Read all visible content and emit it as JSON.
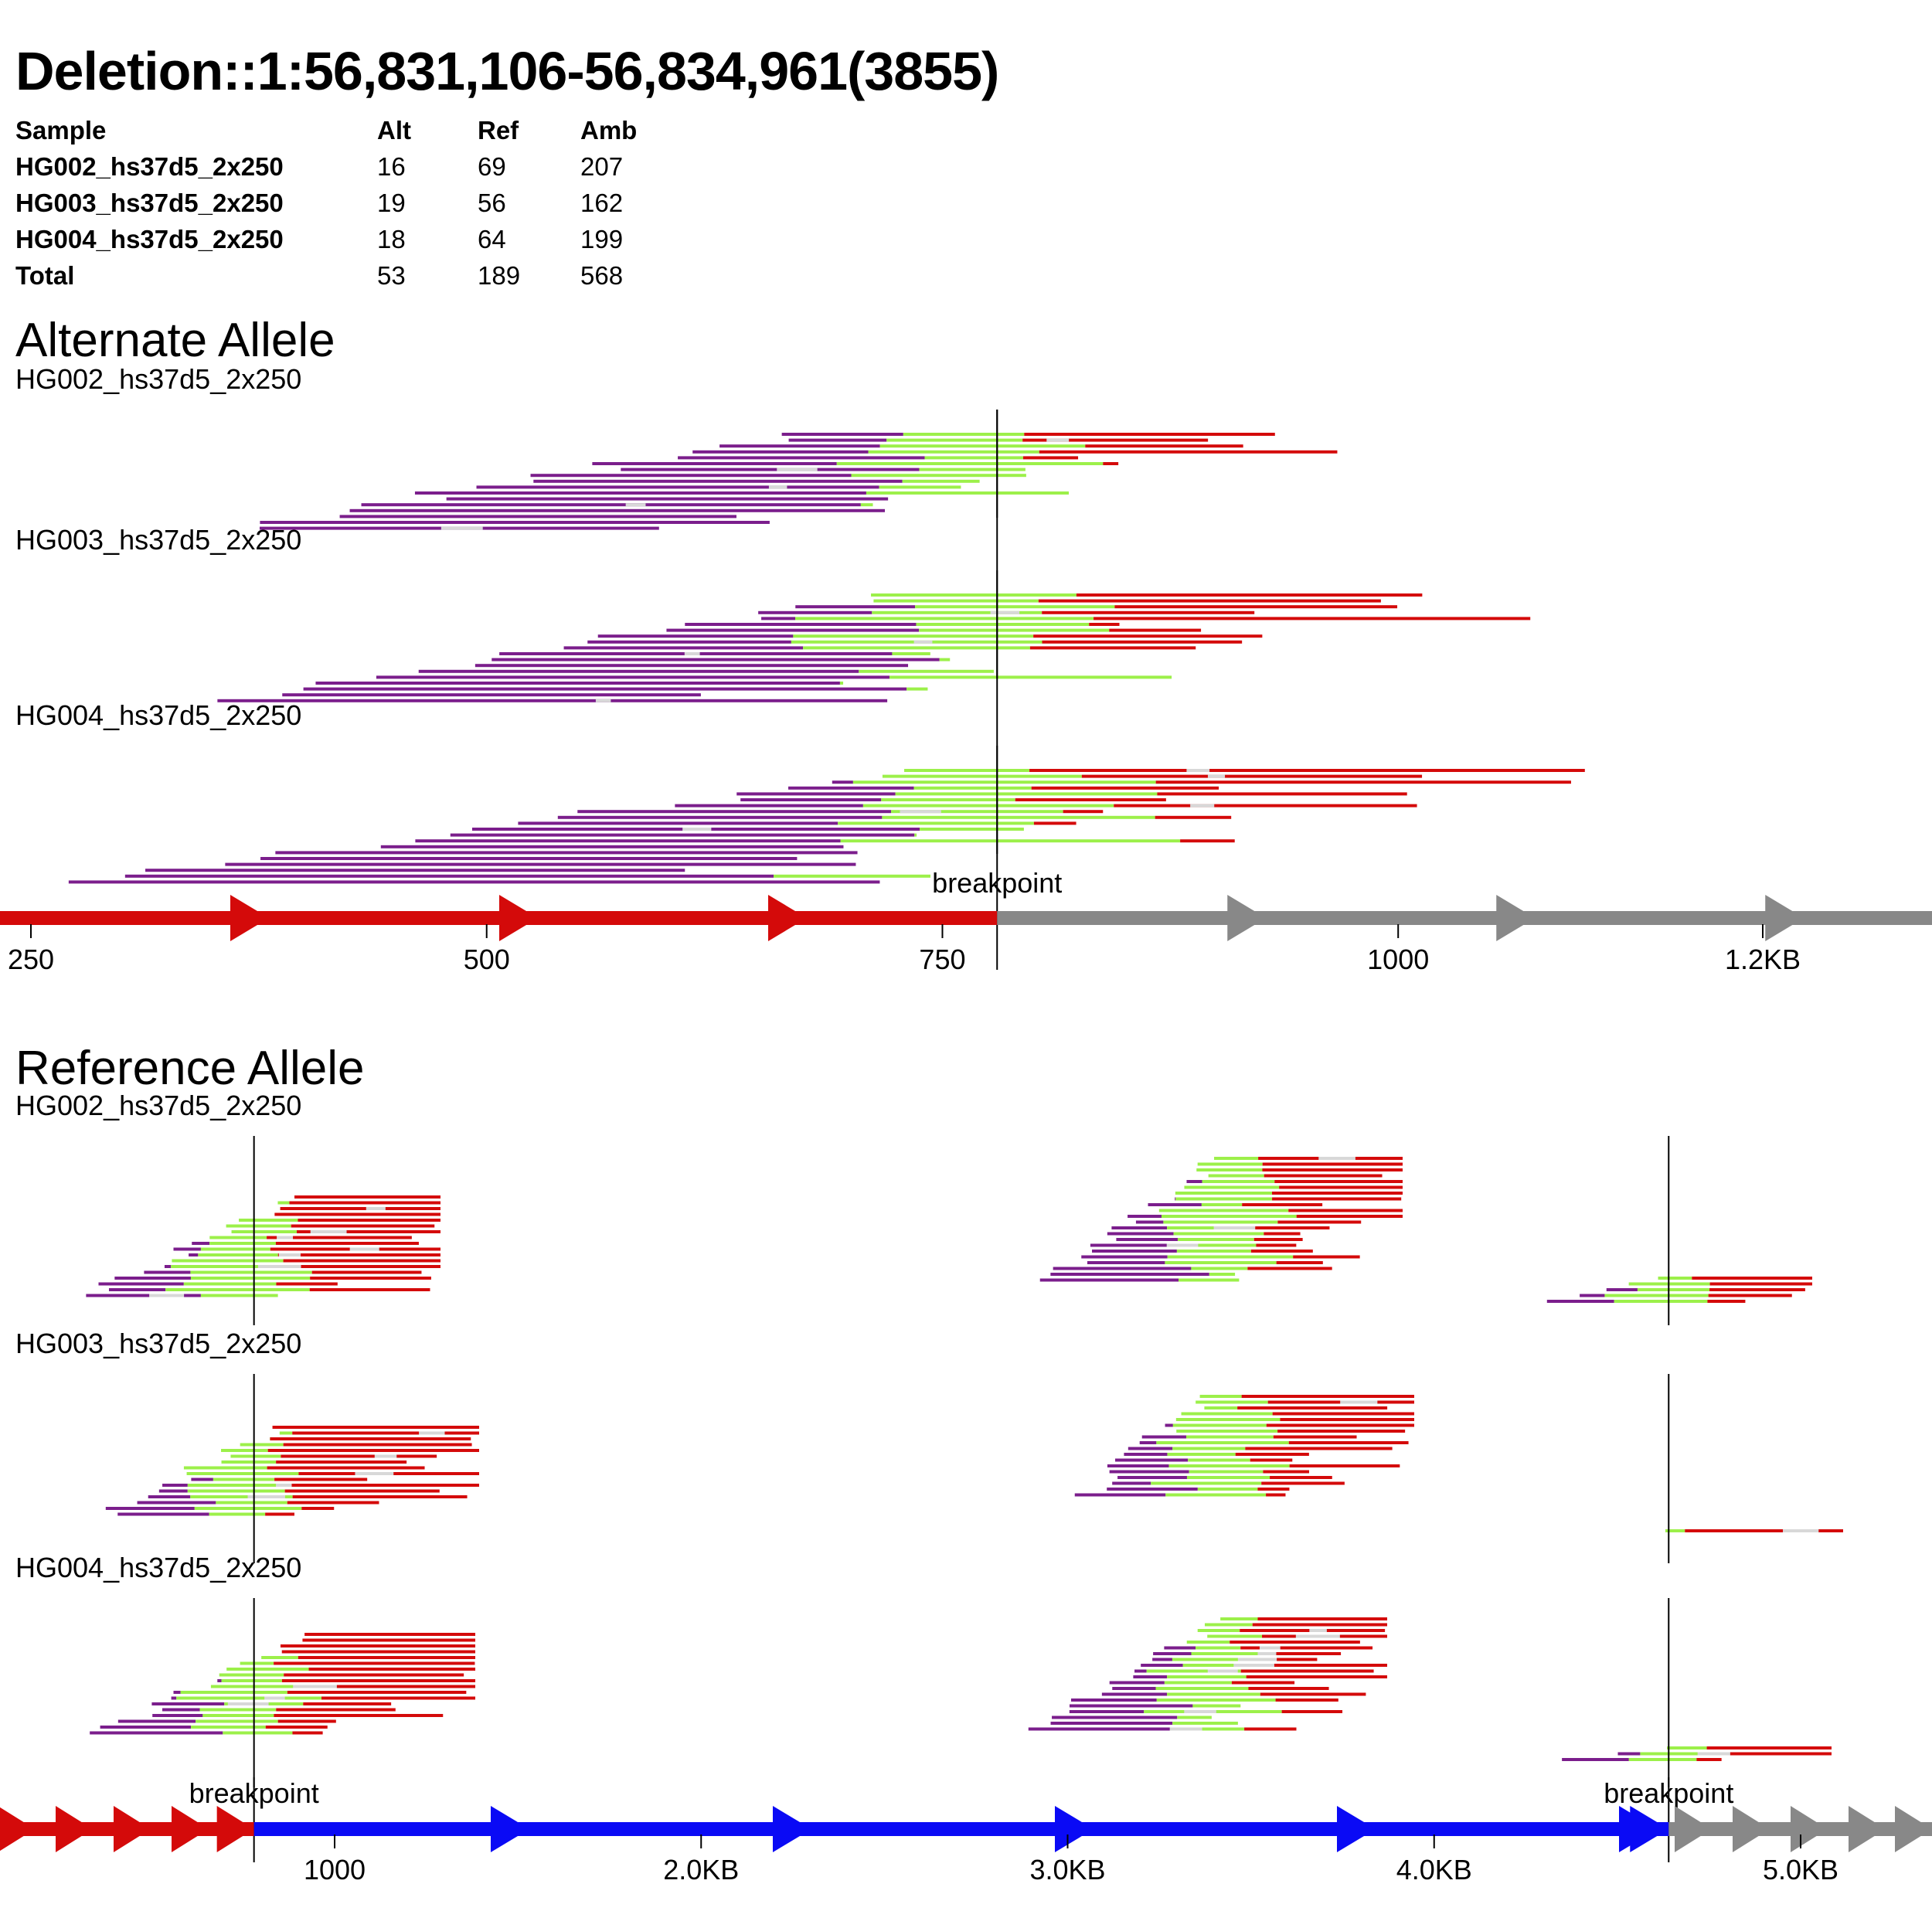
{
  "title": "Deletion::1:56,831,106-56,834,961(3855)",
  "stats": {
    "headers": [
      "Sample",
      "Alt",
      "Ref",
      "Amb"
    ],
    "rows": [
      {
        "sample": "HG002_hs37d5_2x250",
        "alt": "16",
        "ref": "69",
        "amb": "207"
      },
      {
        "sample": "HG003_hs37d5_2x250",
        "alt": "19",
        "ref": "56",
        "amb": "162"
      },
      {
        "sample": "HG004_hs37d5_2x250",
        "alt": "18",
        "ref": "64",
        "amb": "199"
      },
      {
        "sample": "Total",
        "alt": "53",
        "ref": "189",
        "amb": "568"
      }
    ]
  },
  "alt_section": {
    "title": "Alternate Allele",
    "samples": [
      "HG002_hs37d5_2x250",
      "HG003_hs37d5_2x250",
      "HG004_hs37d5_2x250"
    ],
    "breakpoint_label": "breakpoint"
  },
  "ref_section": {
    "title": "Reference Allele",
    "samples": [
      "HG002_hs37d5_2x250",
      "HG003_hs37d5_2x250",
      "HG004_hs37d5_2x250"
    ],
    "breakpoint_label": "breakpoint"
  },
  "colors": {
    "purple": "#7b1e8c",
    "green": "#9cf04a",
    "red": "#d40a0a",
    "gray": "#888888",
    "blue": "#0a0af5",
    "amb": "#d8d8d8",
    "line": "#000000"
  },
  "chart_data": [
    {
      "type": "alignment",
      "name": "Alternate Allele",
      "axis_units": "bp",
      "xlim": [
        230,
        1280
      ],
      "breakpoint": 780,
      "ticks": [
        {
          "value": 250,
          "label": "250"
        },
        {
          "value": 500,
          "label": "500"
        },
        {
          "value": 750,
          "label": "750"
        },
        {
          "value": 1000,
          "label": "1000"
        },
        {
          "value": 1200,
          "label": "1.2KB"
        }
      ],
      "segments": [
        {
          "from": 230,
          "to": 780,
          "color": "red",
          "label": "upstream"
        },
        {
          "from": 780,
          "to": 1280,
          "color": "gray",
          "label": "downstream"
        }
      ],
      "pileups": [
        {
          "sample": "HG002_hs37d5_2x250",
          "reads": 17,
          "min_start": 350,
          "max_end": 1280
        },
        {
          "sample": "HG003_hs37d5_2x250",
          "reads": 19,
          "min_start": 340,
          "max_end": 1230
        },
        {
          "sample": "HG004_hs37d5_2x250",
          "reads": 20,
          "min_start": 270,
          "max_end": 1220
        }
      ]
    },
    {
      "type": "alignment",
      "name": "Reference Allele",
      "axis_units": "bp",
      "xlim": [
        0,
        5300
      ],
      "breakpoints": [
        780,
        4640
      ],
      "ticks": [
        {
          "value": 1000,
          "label": "1000"
        },
        {
          "value": 2000,
          "label": "2.0KB"
        },
        {
          "value": 3000,
          "label": "3.0KB"
        },
        {
          "value": 4000,
          "label": "4.0KB"
        },
        {
          "value": 5000,
          "label": "5.0KB"
        }
      ],
      "segments": [
        {
          "from": 0,
          "to": 780,
          "color": "red",
          "label": "upstream"
        },
        {
          "from": 780,
          "to": 4640,
          "color": "blue",
          "label": "deleted region"
        },
        {
          "from": 4640,
          "to": 5300,
          "color": "gray",
          "label": "downstream"
        }
      ],
      "pileups": [
        {
          "sample": "HG002_hs37d5_2x250",
          "clusters": [
            {
              "center": 780,
              "reads": 18
            },
            {
              "center": 3400,
              "reads": 22
            },
            {
              "center": 4640,
              "reads": 5
            }
          ]
        },
        {
          "sample": "HG003_hs37d5_2x250",
          "clusters": [
            {
              "center": 780,
              "reads": 16
            },
            {
              "center": 3400,
              "reads": 18
            },
            {
              "center": 4640,
              "reads": 1
            }
          ]
        },
        {
          "sample": "HG004_hs37d5_2x250",
          "clusters": [
            {
              "center": 780,
              "reads": 18
            },
            {
              "center": 3400,
              "reads": 20
            },
            {
              "center": 4640,
              "reads": 3
            }
          ]
        }
      ]
    }
  ]
}
